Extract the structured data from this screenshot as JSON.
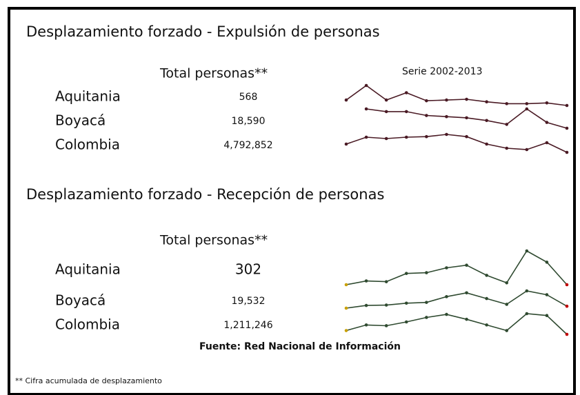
{
  "expulsion": {
    "title": "Desplazamiento forzado - Expulsión de personas",
    "column_header": "Total personas**",
    "series_label": "Serie 2002-2013",
    "rows": [
      {
        "name": "Aquitania",
        "total": "568",
        "trend": [
          60,
          100,
          60,
          80,
          58,
          60,
          62,
          55,
          50,
          50,
          52,
          45
        ]
      },
      {
        "name": "Boyacá",
        "total": "18,590",
        "trend": [
          null,
          85,
          78,
          78,
          68,
          65,
          62,
          55,
          45,
          85,
          50,
          35
        ]
      },
      {
        "name": "Colombia",
        "total": "4,792,852",
        "trend": [
          55,
          80,
          75,
          80,
          82,
          90,
          82,
          55,
          40,
          35,
          60,
          25
        ]
      }
    ]
  },
  "reception": {
    "title": "Desplazamiento forzado - Recepción de personas",
    "column_header": "Total personas**",
    "rows": [
      {
        "name": "Aquitania",
        "total": "302",
        "trend": [
          10,
          20,
          18,
          40,
          42,
          55,
          62,
          35,
          15,
          100,
          70,
          10
        ]
      },
      {
        "name": "Boyacá",
        "total": "19,532",
        "trend": [
          15,
          22,
          23,
          28,
          30,
          45,
          55,
          40,
          25,
          60,
          50,
          20
        ]
      },
      {
        "name": "Colombia",
        "total": "1,211,246",
        "trend": [
          15,
          30,
          28,
          38,
          50,
          58,
          45,
          30,
          15,
          60,
          55,
          5
        ]
      }
    ]
  },
  "source": "Fuente: Red Nacional de Información",
  "footnote": "** Cifra acumulada de desplazamiento"
}
